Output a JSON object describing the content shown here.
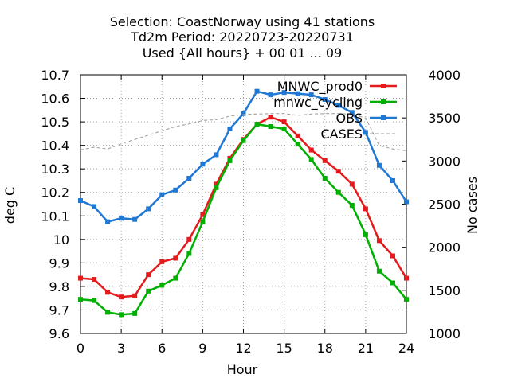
{
  "chart_data": {
    "type": "line",
    "title_lines": [
      "Selection: CoastNorway using    41 stations",
      "Td2m   Period: 20220723-20220731",
      "Used {All hours} + 00 01 ... 09"
    ],
    "xlabel": "Hour",
    "ylabel": "deg C",
    "y2label": "No cases",
    "xlim": [
      0,
      24
    ],
    "ylim": [
      9.6,
      10.7
    ],
    "y2lim": [
      1000,
      4000
    ],
    "x_ticks": [
      0,
      3,
      6,
      9,
      12,
      15,
      18,
      21,
      24
    ],
    "y_ticks": [
      "9.6",
      "9.7",
      "9.8",
      "9.9",
      "10",
      "10.1",
      "10.2",
      "10.3",
      "10.4",
      "10.5",
      "10.6",
      "10.7"
    ],
    "y2_ticks": [
      1000,
      1500,
      2000,
      2500,
      3000,
      3500,
      4000
    ],
    "grid": true,
    "legend_position": "top-right",
    "x": [
      0,
      1,
      2,
      3,
      4,
      5,
      6,
      7,
      8,
      9,
      10,
      11,
      12,
      13,
      14,
      15,
      16,
      17,
      18,
      19,
      20,
      21,
      22,
      23,
      24
    ],
    "series": [
      {
        "name": "MNWC_prod0",
        "color": "#e41a1c",
        "axis": "left",
        "values": [
          9.835,
          9.83,
          9.775,
          9.755,
          9.76,
          9.85,
          9.905,
          9.92,
          10.0,
          10.105,
          10.235,
          10.345,
          10.425,
          10.49,
          10.52,
          10.5,
          10.44,
          10.38,
          10.335,
          10.29,
          10.235,
          10.13,
          9.995,
          9.93,
          9.835
        ]
      },
      {
        "name": "mnwc_cycling",
        "color": "#00b000",
        "axis": "left",
        "values": [
          9.745,
          9.74,
          9.69,
          9.68,
          9.685,
          9.78,
          9.805,
          9.835,
          9.94,
          10.075,
          10.22,
          10.335,
          10.42,
          10.49,
          10.48,
          10.47,
          10.405,
          10.34,
          10.26,
          10.2,
          10.145,
          10.02,
          9.865,
          9.815,
          9.745
        ]
      },
      {
        "name": "OBS",
        "color": "#1f78d4",
        "axis": "left",
        "values": [
          10.165,
          10.14,
          10.075,
          10.09,
          10.085,
          10.13,
          10.19,
          10.21,
          10.26,
          10.32,
          10.36,
          10.47,
          10.535,
          10.63,
          10.615,
          10.625,
          10.62,
          10.615,
          10.595,
          10.57,
          10.54,
          10.455,
          10.315,
          10.25,
          10.16
        ]
      },
      {
        "name": "CASES",
        "color": "#999999",
        "axis": "right",
        "dashed": true,
        "values": [
          3130,
          3160,
          3140,
          3200,
          3250,
          3300,
          3350,
          3400,
          3430,
          3470,
          3480,
          3520,
          3540,
          3545,
          3550,
          3550,
          3530,
          3545,
          3550,
          3550,
          3545,
          3500,
          3180,
          3140,
          3120
        ]
      }
    ]
  }
}
